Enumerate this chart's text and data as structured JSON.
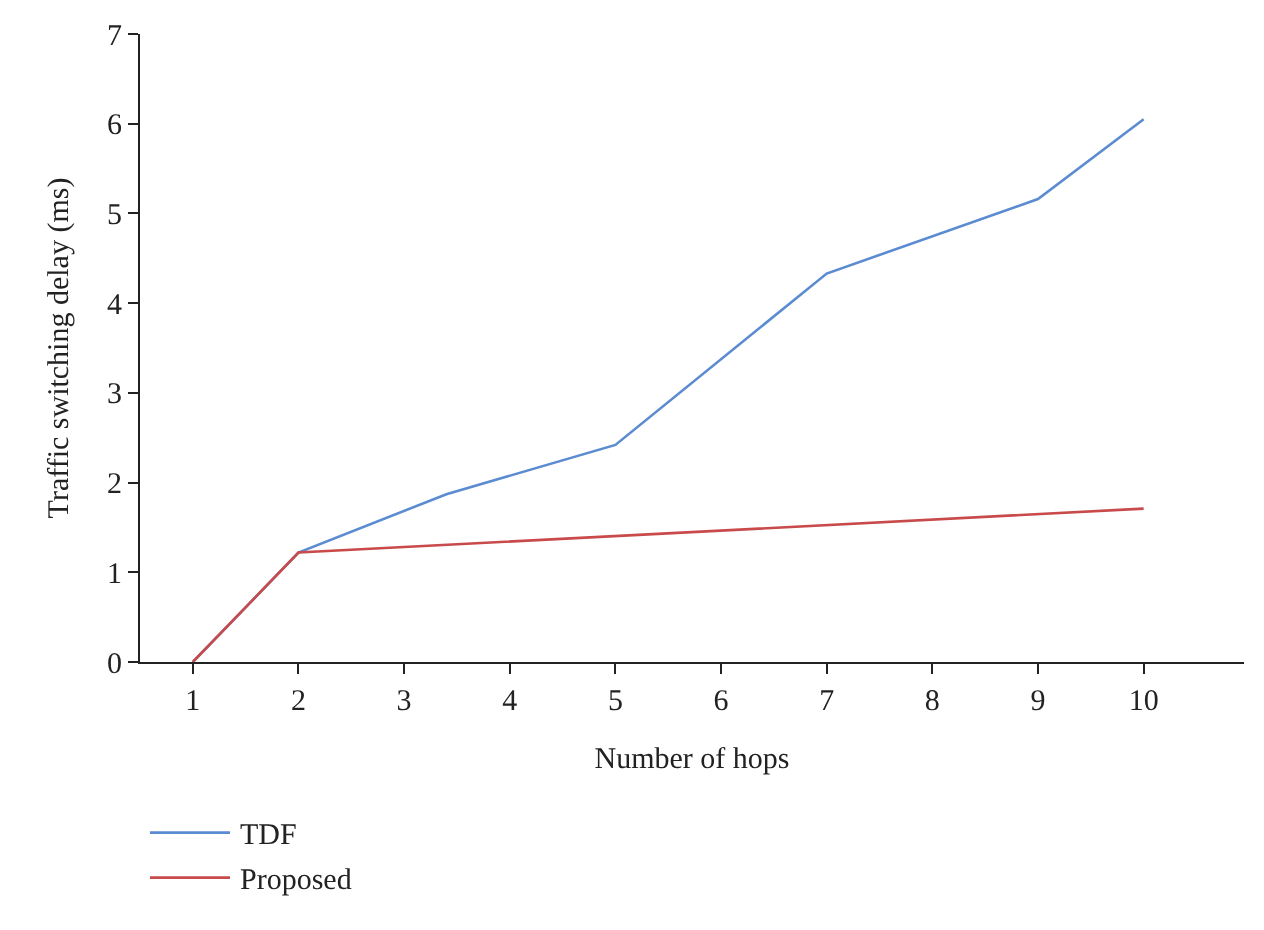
{
  "chart_data": {
    "type": "line",
    "xlabel": "Number of hops",
    "ylabel": "Traffic switching delay (ms)",
    "xlim": [
      0.5,
      10.95
    ],
    "xticks": [
      1,
      2,
      3,
      4,
      5,
      6,
      7,
      8,
      9,
      10
    ],
    "ylim": [
      0,
      7
    ],
    "yticks": [
      0,
      1,
      2,
      3,
      4,
      5,
      6,
      7
    ],
    "legend": "bottom left",
    "marker": "none",
    "line_style": "solid",
    "series": [
      {
        "name": "TDF",
        "color": "#5b8bd0",
        "x": [
          1,
          2,
          3.4,
          5,
          7,
          9,
          10
        ],
        "values": [
          0,
          1.22,
          1.87,
          2.42,
          4.33,
          5.16,
          6.05
        ]
      },
      {
        "name": "Proposed",
        "color": "#c84a4a",
        "x": [
          1,
          2,
          10
        ],
        "values": [
          0,
          1.22,
          1.71
        ]
      }
    ]
  }
}
